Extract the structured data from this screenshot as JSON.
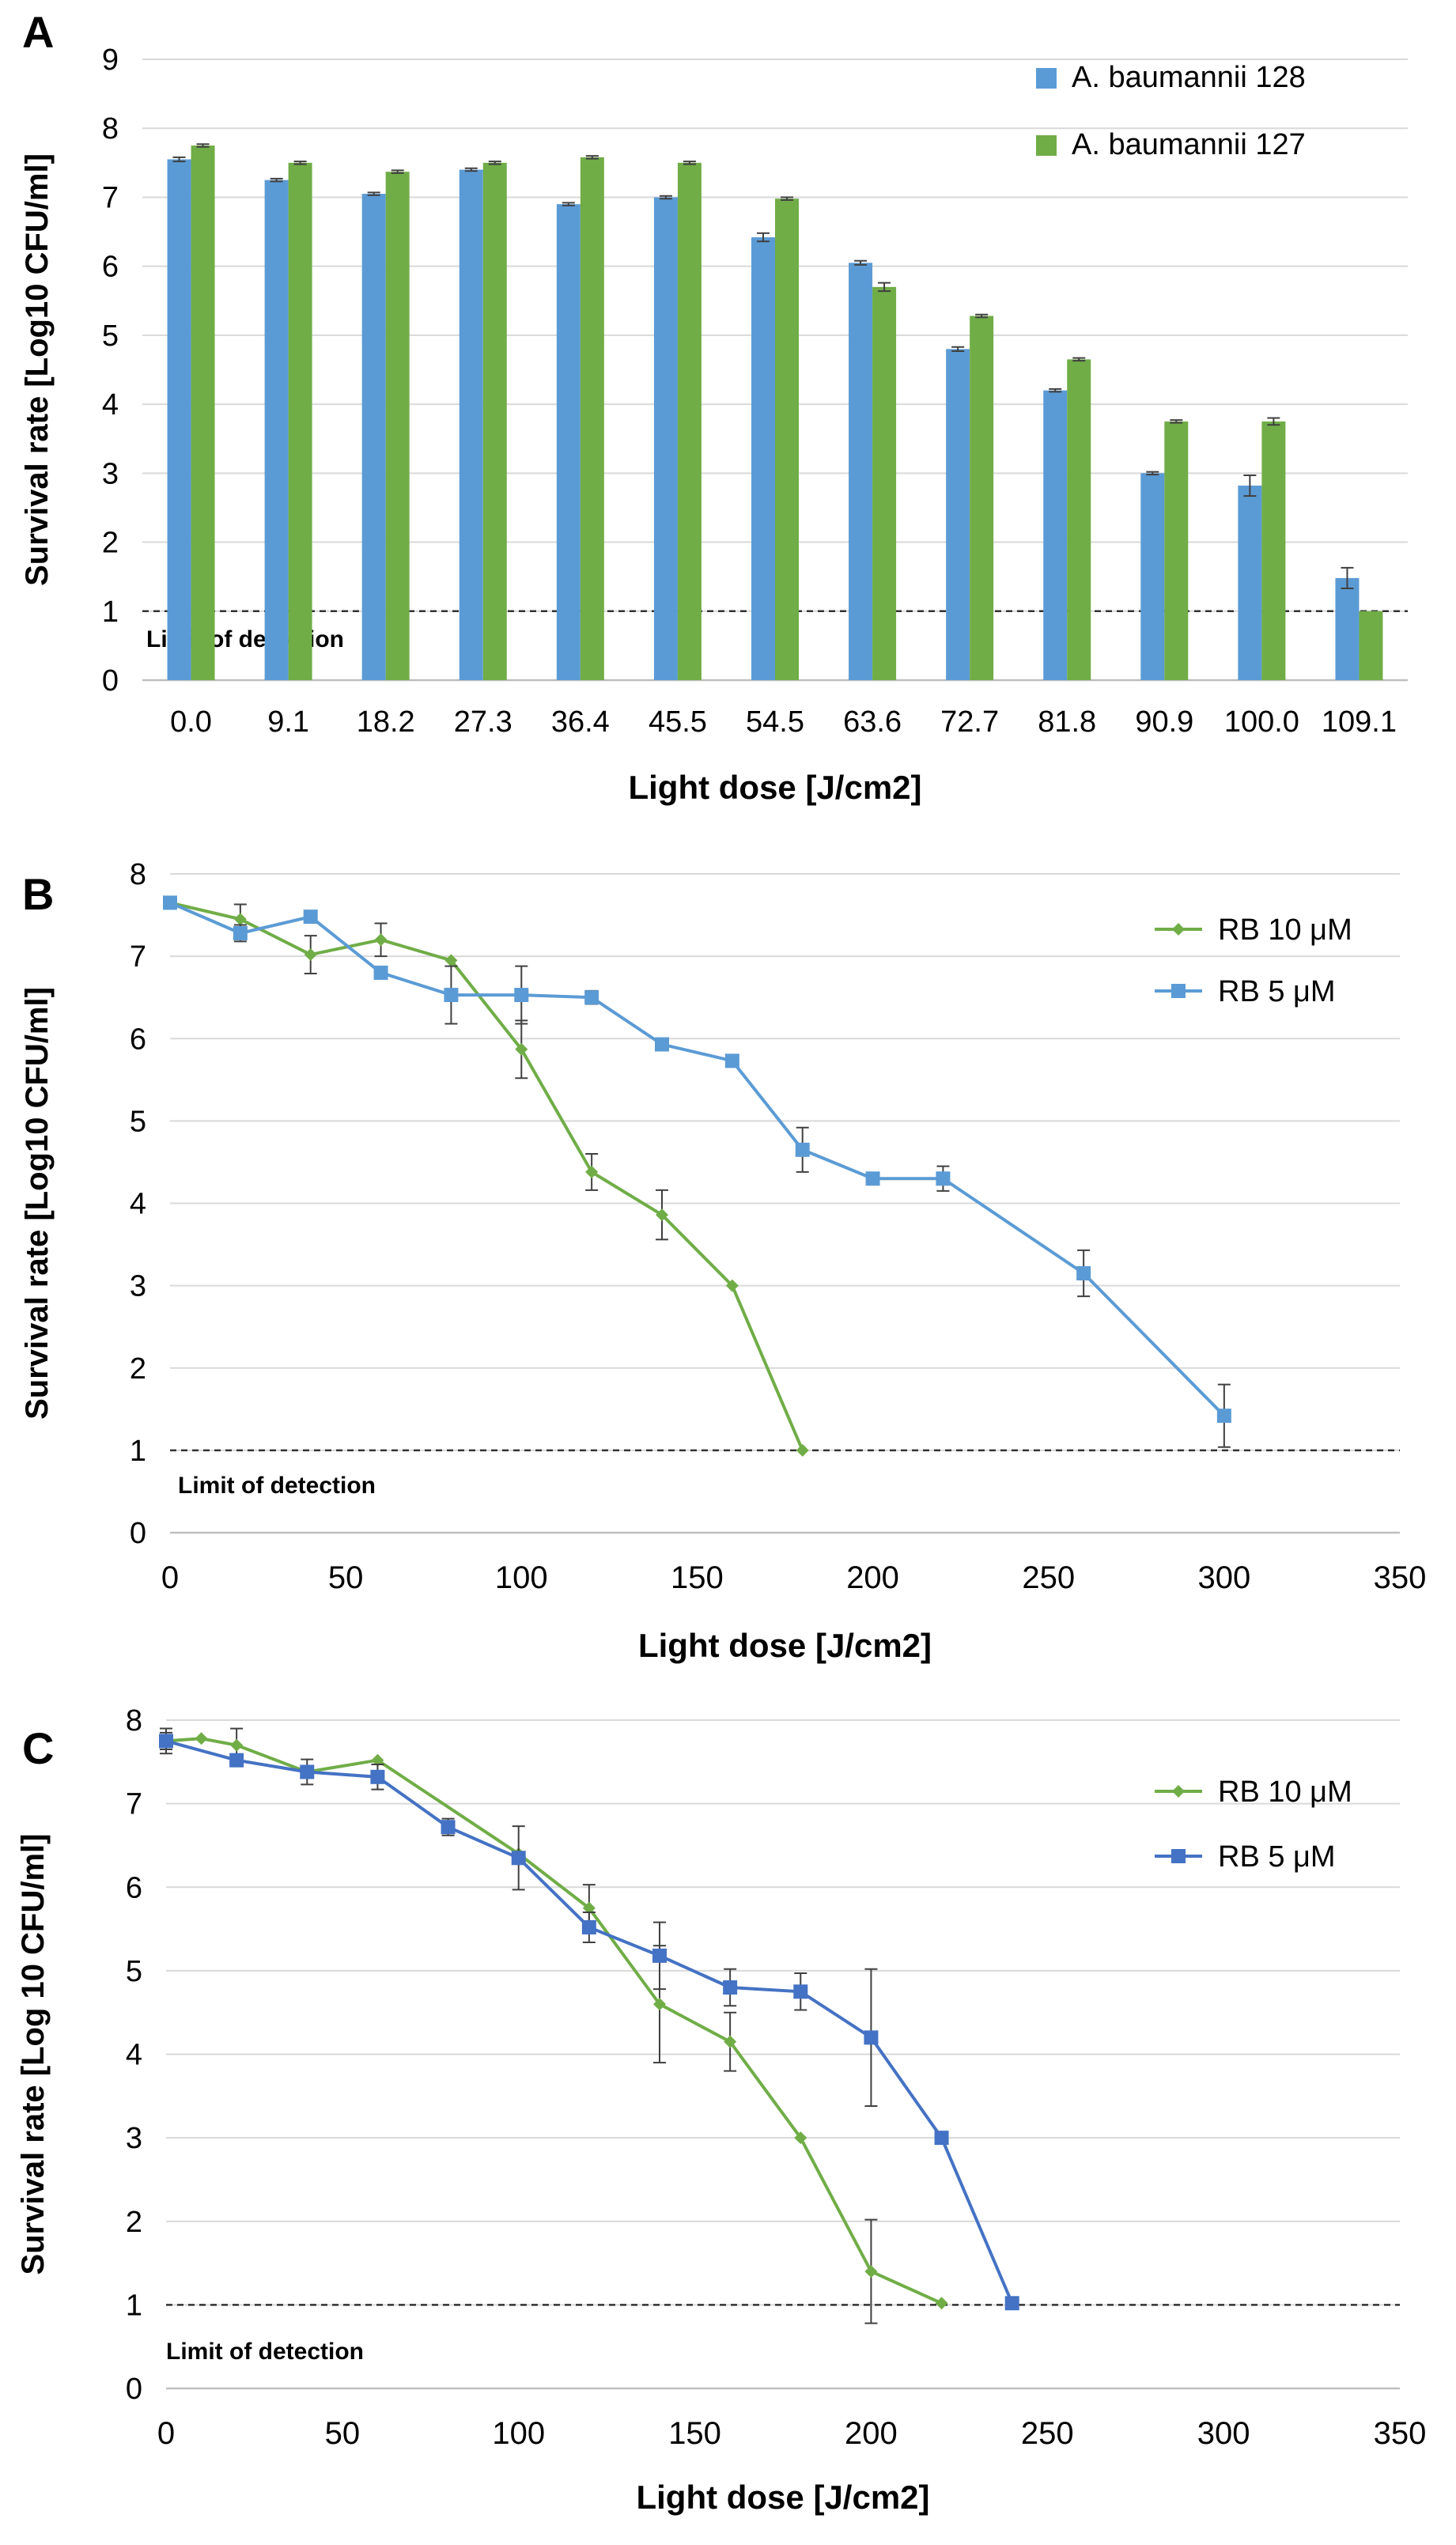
{
  "colors": {
    "blue_bar": "#5b9bd5",
    "green": "#70ad47",
    "light_blue_line": "#5b9bd5",
    "dark_blue_line": "#4472c4",
    "grid": "#d9d9d9",
    "text": "#000000"
  },
  "chart_data": [
    {
      "panel": "A",
      "type": "bar",
      "title": "",
      "xlabel": "Light dose [J/cm2]",
      "ylabel": "Survival rate [Log10 CFU/ml]",
      "ylim": [
        0,
        9
      ],
      "yticks": [
        0,
        1,
        2,
        3,
        4,
        5,
        6,
        7,
        8,
        9
      ],
      "categories": [
        "0.0",
        "9.1",
        "18.2",
        "27.3",
        "36.4",
        "45.5",
        "54.5",
        "63.6",
        "72.7",
        "81.8",
        "90.9",
        "100.0",
        "109.1"
      ],
      "series": [
        {
          "name": "A. baumannii 128",
          "values": [
            7.55,
            7.25,
            7.05,
            7.4,
            6.9,
            7.0,
            6.42,
            6.05,
            4.8,
            4.2,
            3.0,
            2.82,
            1.48
          ],
          "errors": [
            0.03,
            0.02,
            0.02,
            0.02,
            0.02,
            0.02,
            0.06,
            0.03,
            0.03,
            0.02,
            0.02,
            0.15,
            0.15
          ]
        },
        {
          "name": "A. baumannii 127",
          "values": [
            7.75,
            7.5,
            7.37,
            7.5,
            7.58,
            7.5,
            6.98,
            5.7,
            5.28,
            4.65,
            3.75,
            3.75,
            1.0
          ],
          "errors": [
            0.02,
            0.02,
            0.02,
            0.02,
            0.02,
            0.02,
            0.02,
            0.06,
            0.02,
            0.02,
            0.02,
            0.05,
            0.0
          ]
        }
      ],
      "reference_line": {
        "value": 1,
        "label": "Limit of detection"
      },
      "legend": "top-right"
    },
    {
      "panel": "B",
      "type": "line",
      "title": "",
      "xlabel": "Light dose [J/cm2]",
      "ylabel": "Survival rate [Log10 CFU/ml]",
      "xlim": [
        0,
        350
      ],
      "ylim": [
        0,
        8
      ],
      "xticks": [
        0,
        50,
        100,
        150,
        200,
        250,
        300,
        350
      ],
      "yticks": [
        0,
        1,
        2,
        3,
        4,
        5,
        6,
        7,
        8
      ],
      "series": [
        {
          "name": "RB 10 μM",
          "marker": "diamond",
          "x": [
            0,
            20,
            40,
            60,
            80,
            100,
            120,
            140,
            160,
            180
          ],
          "y": [
            7.65,
            7.45,
            7.02,
            7.2,
            6.95,
            5.87,
            4.38,
            3.86,
            3.0,
            1.0
          ],
          "errors": [
            0.0,
            0.18,
            0.23,
            0.2,
            0.0,
            0.35,
            0.22,
            0.3,
            0.0,
            0.0
          ]
        },
        {
          "name": "RB 5 μM",
          "marker": "square",
          "x": [
            0,
            20,
            40,
            60,
            80,
            100,
            120,
            140,
            160,
            180,
            200,
            220,
            260,
            300
          ],
          "y": [
            7.65,
            7.28,
            7.48,
            6.8,
            6.53,
            6.53,
            6.5,
            5.93,
            5.73,
            4.65,
            4.3,
            4.3,
            3.15,
            1.42
          ],
          "errors": [
            0.0,
            0.1,
            0.0,
            0.0,
            0.35,
            0.35,
            0.08,
            0.0,
            0.0,
            0.27,
            0.0,
            0.15,
            0.28,
            0.38
          ]
        }
      ],
      "reference_line": {
        "value": 1,
        "label": "Limit of detection"
      },
      "legend": "top-right"
    },
    {
      "panel": "C",
      "type": "line",
      "title": "",
      "xlabel": "Light dose [J/cm2]",
      "ylabel": "Survival rate [Log 10 CFU/ml]",
      "xlim": [
        0,
        350
      ],
      "ylim": [
        0,
        8
      ],
      "xticks": [
        0,
        50,
        100,
        150,
        200,
        250,
        300,
        350
      ],
      "yticks": [
        0,
        1,
        2,
        3,
        4,
        5,
        6,
        7,
        8
      ],
      "series": [
        {
          "name": "RB 10 μM",
          "marker": "diamond",
          "x": [
            0,
            10,
            20,
            40,
            60,
            100,
            120,
            140,
            160,
            180,
            200,
            220
          ],
          "y": [
            7.75,
            7.78,
            7.7,
            7.38,
            7.52,
            6.4,
            5.75,
            4.6,
            4.15,
            3.0,
            1.4,
            1.02
          ],
          "errors": [
            0.1,
            0.0,
            0.2,
            0.0,
            0.0,
            0.0,
            0.28,
            0.7,
            0.35,
            0.0,
            0.62,
            0.0
          ]
        },
        {
          "name": "RB 5 μM",
          "marker": "square",
          "x": [
            0,
            20,
            40,
            60,
            80,
            100,
            120,
            140,
            160,
            180,
            200,
            220,
            240
          ],
          "y": [
            7.75,
            7.52,
            7.38,
            7.32,
            6.72,
            6.35,
            5.52,
            5.18,
            4.8,
            4.75,
            4.2,
            3.0,
            1.02
          ],
          "errors": [
            0.15,
            0.0,
            0.15,
            0.15,
            0.1,
            0.38,
            0.18,
            0.4,
            0.22,
            0.22,
            0.82,
            0.0,
            0.0
          ]
        }
      ],
      "reference_line": {
        "value": 1,
        "label": "Limit of detection"
      },
      "legend": "top-right"
    }
  ]
}
